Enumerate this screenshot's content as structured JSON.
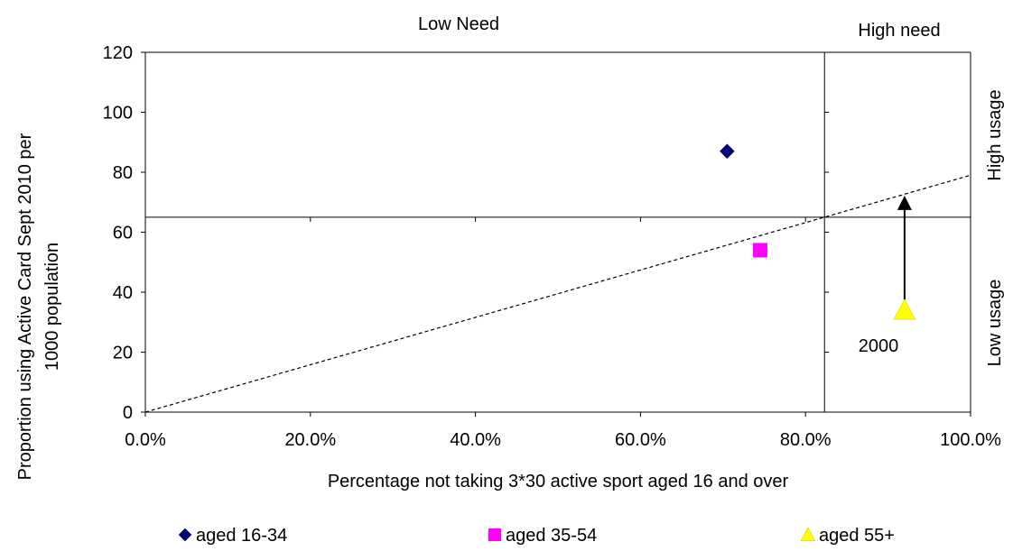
{
  "chart_data": {
    "type": "scatter",
    "xlabel": "Percentage not taking 3*30 active sport aged 16 and over",
    "ylabel_line1": "Proportion using Active Card Sept 2010 per",
    "ylabel_line2": "1000 population",
    "xlim": [
      0,
      1
    ],
    "ylim": [
      0,
      120
    ],
    "x_ticks": [
      0,
      0.2,
      0.4,
      0.6,
      0.8,
      1.0
    ],
    "x_tick_labels": [
      "0.0%",
      "20.0%",
      "40.0%",
      "60.0%",
      "80.0%",
      "100.0%"
    ],
    "y_ticks": [
      0,
      20,
      40,
      60,
      80,
      100,
      120
    ],
    "y_tick_labels": [
      "0",
      "20",
      "40",
      "60",
      "80",
      "100",
      "120"
    ],
    "series": [
      {
        "name": "aged 16-34",
        "marker": "diamond",
        "color": "#000080",
        "points": [
          {
            "x": 0.705,
            "y": 87
          }
        ]
      },
      {
        "name": "aged 35-54",
        "marker": "square",
        "color": "#ff00ff",
        "points": [
          {
            "x": 0.745,
            "y": 54
          }
        ]
      },
      {
        "name": "aged 55+",
        "marker": "triangle",
        "color": "#ffff00",
        "points": [
          {
            "x": 0.92,
            "y": 34
          }
        ]
      }
    ],
    "threshold_x": 0.823,
    "threshold_y": 65,
    "trend_line": {
      "from": {
        "x": 0,
        "y": 0
      },
      "to": {
        "x": 1.0,
        "y": 79
      },
      "style": "dashed"
    },
    "arrow": {
      "from": {
        "x": 0.92,
        "y": 34
      },
      "to": {
        "x": 0.92,
        "y": 71
      }
    },
    "region_labels": {
      "low_need": "Low Need",
      "high_need": "High need",
      "high_usage": "High usage",
      "low_usage": "Low usage"
    },
    "annotation": {
      "text": "2000"
    },
    "grid": false,
    "legend_position": "bottom"
  }
}
